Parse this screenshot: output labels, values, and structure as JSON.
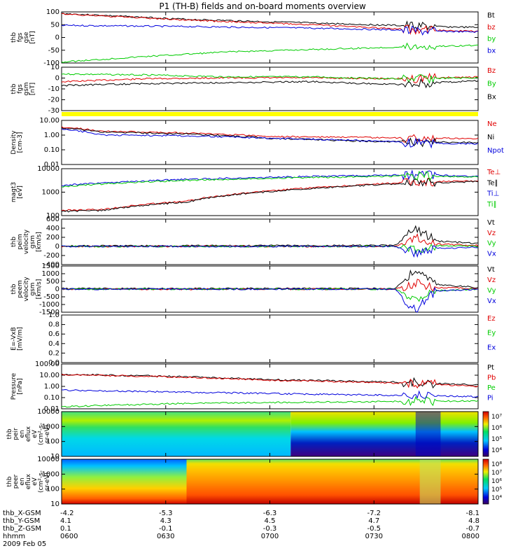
{
  "title": "P1 (TH-B) fields and on-board moments overview",
  "date_label": "2009 Feb 05",
  "colors": {
    "black": "#000000",
    "red": "#e00000",
    "green": "#00cc00",
    "blue": "#0000dd",
    "yellow": "#ffff00"
  },
  "orbit": {
    "labels": [
      "thb_X-GSM",
      "thb_Y-GSM",
      "thb_Z-GSM",
      "hhmm"
    ],
    "columns": [
      {
        "x": "-4.2",
        "y": "4.1",
        "z": "0.1",
        "t": "0600"
      },
      {
        "x": "-5.3",
        "y": "4.3",
        "z": "-0.1",
        "t": "0630"
      },
      {
        "x": "-6.3",
        "y": "4.5",
        "z": "-0.3",
        "t": "0700"
      },
      {
        "x": "-7.2",
        "y": "4.7",
        "z": "-0.5",
        "t": "0730"
      },
      {
        "x": "-8.1",
        "y": "4.8",
        "z": "-0.7",
        "t": "0800"
      }
    ]
  },
  "chart_data": [
    {
      "type": "line",
      "panel": "fgs_gse",
      "ylabel": [
        "thb",
        "fgs",
        "gse",
        "[nT]"
      ],
      "ylim": [
        -110,
        110
      ],
      "yticks": [
        "100",
        "50",
        "0",
        "-50",
        "-100"
      ],
      "series": [
        {
          "name": "Bt",
          "color": "#000000",
          "x": [
            0,
            0.3,
            0.6,
            0.8,
            0.85,
            1
          ],
          "y": [
            103,
            78,
            62,
            52,
            48,
            43
          ]
        },
        {
          "name": "bz",
          "color": "#e00000",
          "x": [
            0,
            0.3,
            0.6,
            0.8,
            0.85,
            1
          ],
          "y": [
            101,
            75,
            55,
            38,
            33,
            27
          ]
        },
        {
          "name": "by",
          "color": "#00cc00",
          "x": [
            0,
            0.2,
            0.4,
            0.6,
            0.8,
            1
          ],
          "y": [
            -106,
            -82,
            -62,
            -52,
            -42,
            -34
          ]
        },
        {
          "name": "bx",
          "color": "#0000dd",
          "x": [
            0,
            0.3,
            0.6,
            0.8,
            0.85,
            1
          ],
          "y": [
            52,
            47,
            40,
            33,
            28,
            24
          ]
        }
      ]
    },
    {
      "type": "line",
      "panel": "fgs_gsm",
      "ylabel": [
        "thb",
        "fgs",
        "gsm",
        "[nT]"
      ],
      "ylim": [
        -35,
        10
      ],
      "yticks": [
        "10",
        "0",
        "-10",
        "-20",
        "-30"
      ],
      "series": [
        {
          "name": "Bz",
          "color": "#e00000",
          "x": [
            0,
            0.2,
            0.4,
            0.6,
            0.8,
            1
          ],
          "y": [
            -5,
            -2,
            -1,
            -1,
            -2,
            0
          ]
        },
        {
          "name": "By",
          "color": "#00cc00",
          "x": [
            0,
            0.2,
            0.4,
            0.6,
            0.8,
            1
          ],
          "y": [
            3,
            2,
            0,
            0,
            -2,
            -1
          ]
        },
        {
          "name": "Bx",
          "color": "#000000",
          "x": [
            0,
            0.2,
            0.4,
            0.6,
            0.8,
            1
          ],
          "y": [
            -9,
            -7,
            -6,
            -5,
            -8,
            -4
          ]
        }
      ]
    },
    {
      "type": "line",
      "panel": "density",
      "ylabel": [
        "Density",
        "[cm-3]"
      ],
      "log": true,
      "ylim": [
        0.01,
        10
      ],
      "yticks": [
        "10.00",
        "1.00",
        "0.10",
        "0.01"
      ],
      "series": [
        {
          "name": "Ne",
          "color": "#e00000",
          "x": [
            0,
            0.1,
            0.3,
            0.5,
            0.7,
            0.85,
            1
          ],
          "y": [
            3.5,
            1.8,
            1.4,
            0.8,
            0.7,
            0.6,
            0.6
          ]
        },
        {
          "name": "Ni",
          "color": "#000000",
          "x": [
            0,
            0.1,
            0.3,
            0.5,
            0.7,
            0.85,
            1
          ],
          "y": [
            3.0,
            1.6,
            1.2,
            0.6,
            0.4,
            0.35,
            0.3
          ]
        },
        {
          "name": "Npot",
          "color": "#0000dd",
          "x": [
            0,
            0.1,
            0.3,
            0.5,
            0.7,
            0.85,
            1
          ],
          "y": [
            2.5,
            1.0,
            0.9,
            0.6,
            0.45,
            0.3,
            0.25
          ]
        }
      ]
    },
    {
      "type": "line",
      "panel": "temperature",
      "ylabel": [
        "magt3",
        "[eV]"
      ],
      "log": true,
      "ylim": [
        50,
        10000
      ],
      "yticks": [
        "10000",
        "1000",
        "100"
      ],
      "series": [
        {
          "name": "Te⊥",
          "color": "#e00000",
          "x": [
            0,
            0.1,
            0.3,
            0.5,
            0.7,
            0.85,
            1
          ],
          "y": [
            90,
            100,
            250,
            800,
            1500,
            2200,
            2500
          ]
        },
        {
          "name": "Te∥",
          "color": "#000000",
          "x": [
            0,
            0.1,
            0.3,
            0.5,
            0.7,
            0.85,
            1
          ],
          "y": [
            80,
            90,
            230,
            750,
            1400,
            2000,
            2300
          ]
        },
        {
          "name": "Ti⊥",
          "color": "#0000dd",
          "x": [
            0,
            0.1,
            0.3,
            0.5,
            0.7,
            0.85,
            1
          ],
          "y": [
            1500,
            2000,
            3000,
            3800,
            4500,
            5000,
            4200
          ]
        },
        {
          "name": "Ti∥",
          "color": "#00cc00",
          "x": [
            0,
            0.1,
            0.3,
            0.5,
            0.7,
            0.85,
            1
          ],
          "y": [
            1300,
            1800,
            2700,
            3400,
            4000,
            4500,
            3800
          ]
        }
      ]
    },
    {
      "type": "line",
      "panel": "peim_velocity",
      "ylabel": [
        "thb",
        "peim",
        "velocity",
        "gsm",
        "[km/s]"
      ],
      "ylim": [
        -400,
        600
      ],
      "yticks": [
        "600",
        "400",
        "200",
        "0",
        "-200",
        "-400"
      ],
      "series": [
        {
          "name": "Vt",
          "color": "#000000",
          "x": [
            0,
            0.8,
            0.85,
            0.9,
            1
          ],
          "y": [
            10,
            20,
            380,
            120,
            60
          ]
        },
        {
          "name": "Vz",
          "color": "#e00000",
          "x": [
            0,
            0.8,
            0.85,
            0.9,
            1
          ],
          "y": [
            0,
            0,
            200,
            50,
            20
          ]
        },
        {
          "name": "Vy",
          "color": "#00cc00",
          "x": [
            0,
            0.8,
            0.85,
            0.9,
            1
          ],
          "y": [
            0,
            0,
            -80,
            20,
            0
          ]
        },
        {
          "name": "Vx",
          "color": "#0000dd",
          "x": [
            0,
            0.8,
            0.85,
            0.9,
            1
          ],
          "y": [
            0,
            0,
            -150,
            -40,
            -20
          ]
        }
      ]
    },
    {
      "type": "line",
      "panel": "peem_velocity",
      "ylabel": [
        "thb",
        "peem",
        "velocity",
        "gsm",
        "[km/s]"
      ],
      "ylim": [
        -1500,
        1500
      ],
      "yticks": [
        "1500",
        "1000",
        "500",
        "0",
        "-500",
        "-1000",
        "-1500"
      ],
      "series": [
        {
          "name": "Vt",
          "color": "#000000",
          "x": [
            0,
            0.8,
            0.85,
            0.9,
            1
          ],
          "y": [
            30,
            40,
            1200,
            300,
            100
          ]
        },
        {
          "name": "Vz",
          "color": "#e00000",
          "x": [
            0,
            0.8,
            0.85,
            0.9,
            1
          ],
          "y": [
            0,
            0,
            400,
            100,
            30
          ]
        },
        {
          "name": "Vy",
          "color": "#00cc00",
          "x": [
            0,
            0.8,
            0.85,
            0.9,
            1
          ],
          "y": [
            0,
            0,
            -700,
            -100,
            0
          ]
        },
        {
          "name": "Vx",
          "color": "#0000dd",
          "x": [
            0,
            0.8,
            0.85,
            0.9,
            1
          ],
          "y": [
            0,
            0,
            -1400,
            -100,
            -20
          ]
        }
      ]
    },
    {
      "type": "line",
      "panel": "efield",
      "ylabel": [
        "E=-VxB",
        "[mV/m]"
      ],
      "ylim": [
        0,
        1
      ],
      "yticks": [
        "1.0",
        "0.8",
        "0.6",
        "0.4",
        "0.2",
        "0.0"
      ],
      "series": [
        {
          "name": "Ez",
          "color": "#e00000",
          "x": [],
          "y": []
        },
        {
          "name": "Ey",
          "color": "#00cc00",
          "x": [],
          "y": []
        },
        {
          "name": "Ex",
          "color": "#0000dd",
          "x": [],
          "y": []
        }
      ]
    },
    {
      "type": "line",
      "panel": "pressure",
      "ylabel": [
        "Pressure",
        "[nPa]"
      ],
      "log": true,
      "ylim": [
        0.01,
        100
      ],
      "yticks": [
        "100.00",
        "10.00",
        "1.00",
        "0.10",
        "0.01"
      ],
      "series": [
        {
          "name": "Pt",
          "color": "#000000",
          "x": [
            0,
            0.5,
            1
          ],
          "y": [
            12,
            4,
            1.3
          ]
        },
        {
          "name": "Pb",
          "color": "#e00000",
          "x": [
            0,
            0.5,
            1
          ],
          "y": [
            11,
            3.5,
            1.0
          ]
        },
        {
          "name": "Pe",
          "color": "#00cc00",
          "x": [
            0,
            0.3,
            0.6,
            1
          ],
          "y": [
            0.015,
            0.03,
            0.04,
            0.05
          ]
        },
        {
          "name": "Pi",
          "color": "#0000dd",
          "x": [
            0,
            0.3,
            0.6,
            1
          ],
          "y": [
            0.45,
            0.3,
            0.2,
            0.12
          ]
        }
      ]
    },
    {
      "type": "heatmap",
      "panel": "peir_eflux",
      "ylabel": [
        "thb",
        "peir",
        "en",
        "eflux",
        "eV",
        "(cm²-s-",
        "sr-eV)"
      ],
      "log": true,
      "ylim": [
        10,
        20000
      ],
      "yticks": [
        "10000",
        "1000",
        "100",
        "10"
      ],
      "colorbar_ticks": [
        "10⁷",
        "10⁶",
        "10⁵",
        "10⁴"
      ]
    },
    {
      "type": "heatmap",
      "panel": "peer_eflux",
      "ylabel": [
        "thb",
        "peer",
        "en",
        "eflux",
        "eV",
        "(cm²-s-",
        "sr-eV)"
      ],
      "log": true,
      "ylim": [
        10,
        20000
      ],
      "yticks": [
        "10000",
        "1000",
        "100",
        "10"
      ],
      "colorbar_ticks": [
        "10⁸",
        "10⁷",
        "10⁶",
        "10⁵",
        "10⁴"
      ]
    }
  ]
}
